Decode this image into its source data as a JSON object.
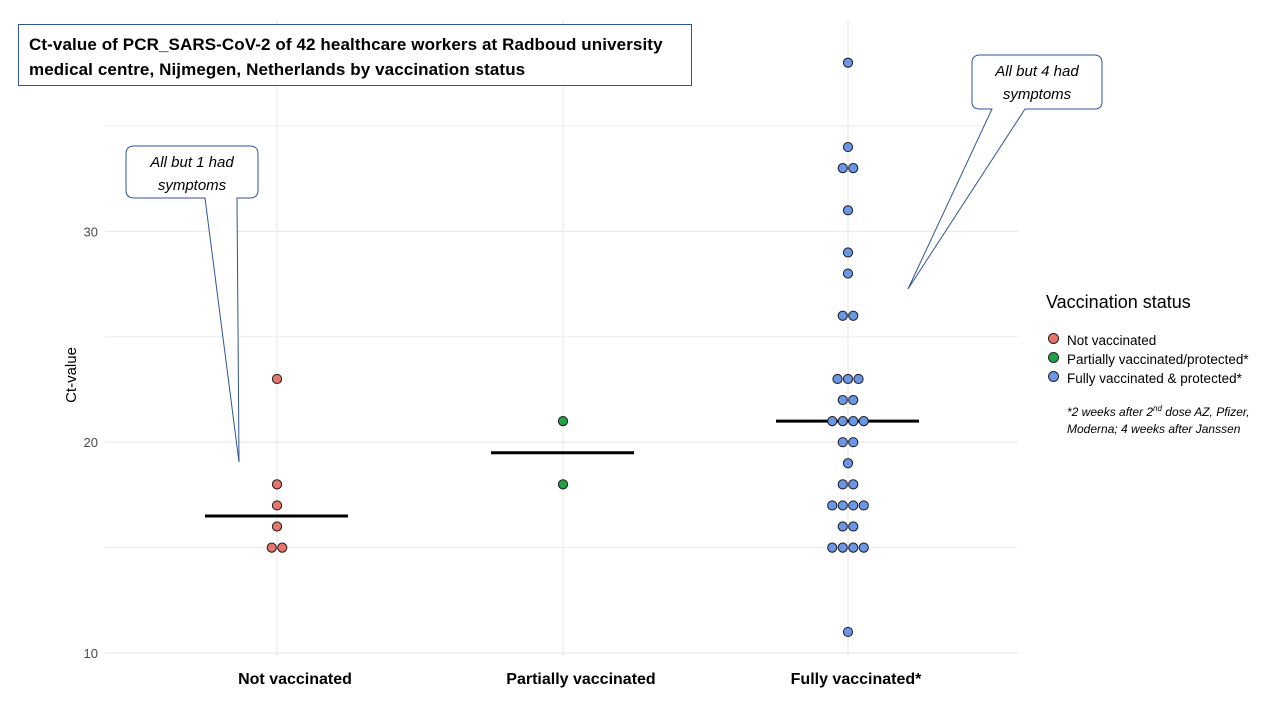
{
  "title": "Ct-value of PCR_SARS-CoV-2 of 42 healthcare workers at Radboud university medical centre, Nijmegen, Netherlands by vaccination status",
  "legend": {
    "title": "Vaccination status",
    "items": [
      {
        "label": "Not vaccinated",
        "color": "#e8756c"
      },
      {
        "label": "Partially vaccinated/protected*",
        "color": "#21a345"
      },
      {
        "label": "Fully vaccinated & protected*",
        "color": "#6b95e6"
      }
    ],
    "footnote_pre": "*2 weeks after 2",
    "footnote_sup": "nd",
    "footnote_post": " dose AZ, Pfizer, Moderna; 4 weeks after Janssen"
  },
  "callouts": [
    {
      "text": "All but 1 had symptoms",
      "series": "Not vaccinated"
    },
    {
      "text": "All but 4 had symptoms",
      "series": "Fully vaccinated & protected*"
    }
  ],
  "chart_data": {
    "type": "scatter",
    "title": "Ct-value of PCR_SARS-CoV-2 of 42 healthcare workers at Radboud university medical centre, Nijmegen, Netherlands by vaccination status",
    "xlabel": "",
    "ylabel": "Ct-value",
    "categories": [
      "Not vaccinated",
      "Partially vaccinated",
      "Fully vaccinated*"
    ],
    "yticks": [
      10,
      20,
      30
    ],
    "ylim": [
      10,
      37
    ],
    "grid": true,
    "legend_position": "right",
    "series": [
      {
        "name": "Not vaccinated",
        "category": "Not vaccinated",
        "color": "#e8756c",
        "values": [
          23,
          18,
          17,
          16,
          15,
          15
        ],
        "median": 16.5
      },
      {
        "name": "Partially vaccinated/protected*",
        "category": "Partially vaccinated",
        "color": "#21a345",
        "values": [
          21,
          18
        ],
        "median": 19.5
      },
      {
        "name": "Fully vaccinated & protected*",
        "category": "Fully vaccinated*",
        "color": "#6b95e6",
        "values": [
          38,
          34,
          33,
          33,
          31,
          29,
          28,
          26,
          26,
          23,
          23,
          23,
          22,
          22,
          21,
          21,
          21,
          21,
          20,
          20,
          19,
          18,
          18,
          17,
          17,
          17,
          17,
          16,
          16,
          15,
          15,
          15,
          15,
          11
        ],
        "median": 21
      }
    ]
  }
}
